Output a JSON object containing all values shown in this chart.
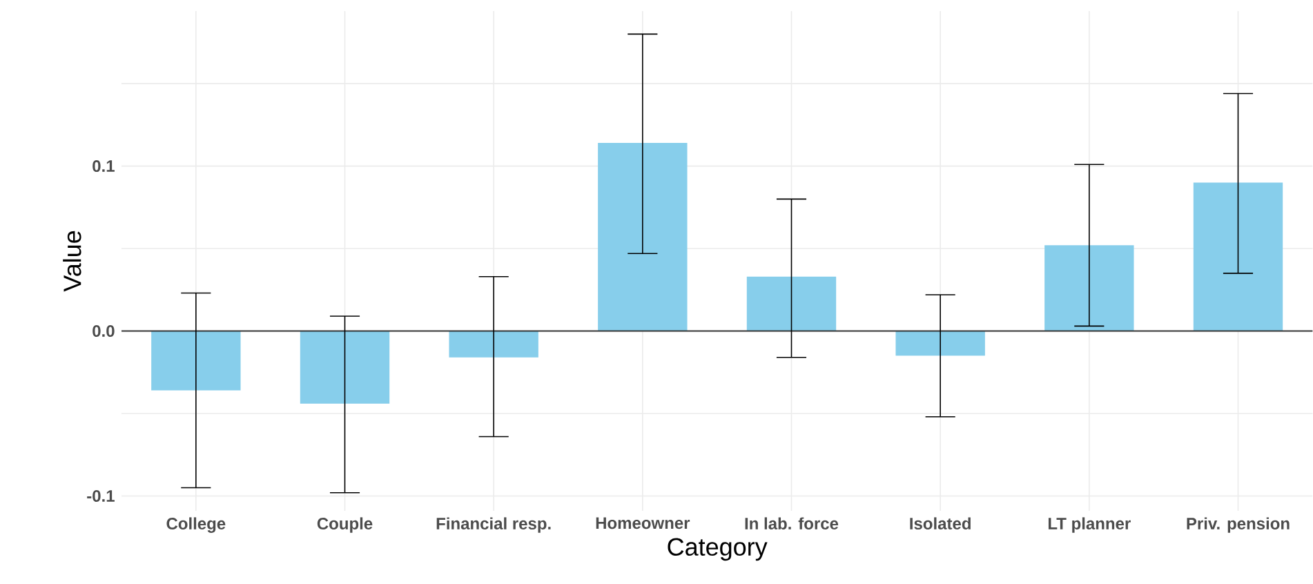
{
  "chart_data": {
    "type": "bar",
    "xlabel": "Category",
    "ylabel": "Value",
    "categories": [
      "College",
      "Couple",
      "Financial resp.",
      "Homeowner",
      "In lab. force",
      "Isolated",
      "LT planner",
      "Priv. pension"
    ],
    "values": [
      -0.036,
      -0.044,
      -0.016,
      0.114,
      0.033,
      -0.015,
      0.052,
      0.09
    ],
    "errors": [
      [
        -0.095,
        0.023
      ],
      [
        -0.098,
        0.009
      ],
      [
        -0.064,
        0.033
      ],
      [
        0.047,
        0.18
      ],
      [
        -0.016,
        0.08
      ],
      [
        -0.052,
        0.022
      ],
      [
        0.003,
        0.101
      ],
      [
        0.035,
        0.144
      ]
    ],
    "color": "#87ceeb",
    "ylim": [
      -0.109,
      0.194
    ],
    "yticks": [
      {
        "value": -0.1,
        "label": "-0.1"
      },
      {
        "value": -0.05,
        "label": null
      },
      {
        "value": 0,
        "label": "0.0"
      },
      {
        "value": 0.05,
        "label": null
      },
      0.1,
      {
        "value": 0.15,
        "label": null
      }
    ],
    "grid": true,
    "ref_lines": [
      {
        "axis": "y",
        "value": 0,
        "color": "#333333"
      }
    ]
  }
}
